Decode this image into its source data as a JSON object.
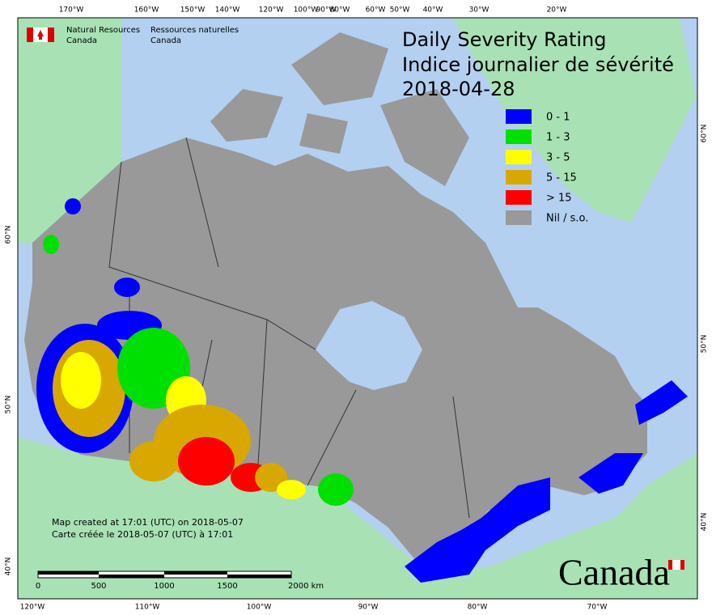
{
  "header": {
    "org_en": [
      "Natural Resources",
      "Canada"
    ],
    "org_fr": [
      "Ressources naturelles",
      "Canada"
    ]
  },
  "title": [
    "Daily Severity Rating",
    "Indice journalier de sévérité",
    "2018-04-28"
  ],
  "legend": [
    {
      "label": "0 - 1",
      "color": "#0000ff"
    },
    {
      "label": "1 - 3",
      "color": "#00e000"
    },
    {
      "label": "3 - 5",
      "color": "#ffff00"
    },
    {
      "label": "5 - 15",
      "color": "#d8a800"
    },
    {
      "label": "> 15",
      "color": "#ff0000"
    },
    {
      "label": "Nil / s.o.",
      "color": "#999999"
    }
  ],
  "top_longitudes": [
    "170°W",
    "160°W",
    "150°W",
    "140°W",
    "120°W",
    "100°W",
    "90°W",
    "80°W",
    "60°W",
    "50°W",
    "40°W",
    "30°W",
    "20°W"
  ],
  "bottom_longitudes": [
    "120°W",
    "110°W",
    "100°W",
    "90°W",
    "80°W",
    "70°W"
  ],
  "left_latitudes": [
    "60°N",
    "50°N",
    "40°N"
  ],
  "right_latitudes": [
    "60°N",
    "50°N",
    "40°N"
  ],
  "notes": [
    "Map created at 17:01 (UTC) on 2018-05-07",
    "Carte créée le 2018-05-07 (UTC) à 17:01"
  ],
  "scale_bar": [
    "0",
    "500",
    "1000",
    "1500",
    "2000 km"
  ],
  "wordmark": "Canada"
}
